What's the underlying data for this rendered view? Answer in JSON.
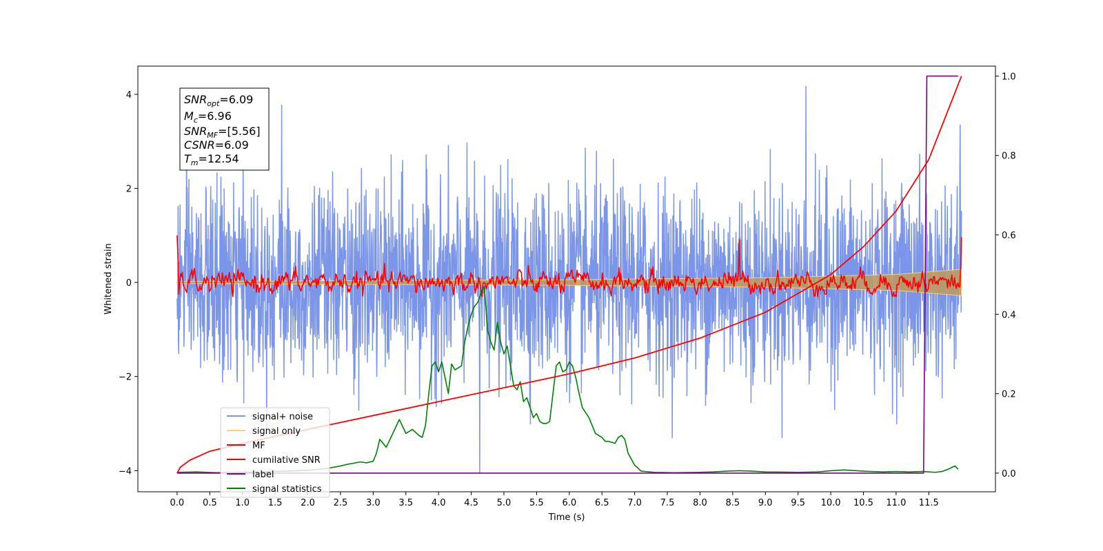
{
  "chart_data": {
    "type": "line",
    "title": "",
    "xlabel": "Time (s)",
    "ylabel": "Whitened strain",
    "ylabel_right": "",
    "xlim": [
      -0.6,
      12.52
    ],
    "ylim": [
      -4.45,
      4.6
    ],
    "ylim_right": [
      -0.047,
      1.025
    ],
    "xticks": [
      0.0,
      0.5,
      1.0,
      1.5,
      2.0,
      2.5,
      3.0,
      3.5,
      4.0,
      4.5,
      5.0,
      5.5,
      6.0,
      6.5,
      7.0,
      7.5,
      8.0,
      8.5,
      9.0,
      9.5,
      10.0,
      10.5,
      11.0,
      11.5
    ],
    "yticks_left": [
      -4,
      -2,
      0,
      2,
      4
    ],
    "yticks_right": [
      0.0,
      0.2,
      0.4,
      0.6,
      0.8,
      1.0
    ],
    "grid": false,
    "legend_position": "lower-left",
    "info_box": {
      "position": "top-left",
      "lines": [
        {
          "sym": "SNR",
          "sub": "opt",
          "rest": "=6.09"
        },
        {
          "sym": "M",
          "sub": "c",
          "rest": "=6.96"
        },
        {
          "sym": "SNR",
          "sub": "MF",
          "rest": "=[5.56]"
        },
        {
          "sym": "CSNR",
          "sub": "",
          "rest": "=6.09"
        },
        {
          "sym": "T",
          "sub": "m",
          "rest": "=12.54"
        }
      ]
    },
    "series": [
      {
        "name": "signal+ noise",
        "color": "#7b95e8",
        "axis": "left",
        "approx_std": 1.0,
        "approx_range": [
          -4.05,
          4.17
        ],
        "notable_points": [
          [
            4.63,
            -4.05
          ],
          [
            9.62,
            4.17
          ],
          [
            1.6,
            3.77
          ],
          [
            11.98,
            3.35
          ]
        ]
      },
      {
        "name": "signal only",
        "color": "#ffcc80",
        "axis": "left",
        "approx_envelope": [
          [
            0.0,
            0.02
          ],
          [
            6.0,
            0.06
          ],
          [
            9.0,
            0.1
          ],
          [
            11.0,
            0.17
          ],
          [
            12.0,
            0.28
          ]
        ]
      },
      {
        "name": "MF",
        "color": "#ff0000",
        "axis": "left",
        "start_value": 1.0,
        "end_value": 0.97,
        "approx_std": 0.12,
        "peaks": [
          [
            0.0,
            1.0
          ],
          [
            8.6,
            0.92
          ],
          [
            12.0,
            0.97
          ]
        ]
      },
      {
        "name": "cumilative SNR",
        "color": "#ff0000",
        "axis": "right",
        "x": [
          0.0,
          0.05,
          0.2,
          0.5,
          1.0,
          2.0,
          3.0,
          4.0,
          5.0,
          6.0,
          7.0,
          8.0,
          9.0,
          10.0,
          10.5,
          11.0,
          11.5,
          12.0
        ],
        "values": [
          0.0,
          0.015,
          0.033,
          0.055,
          0.075,
          0.11,
          0.145,
          0.18,
          0.215,
          0.25,
          0.29,
          0.34,
          0.405,
          0.5,
          0.57,
          0.66,
          0.79,
          1.0
        ]
      },
      {
        "name": "label",
        "color": "#800080",
        "axis": "right",
        "x": [
          0.0,
          11.42,
          11.47,
          11.95
        ],
        "values": [
          0.0,
          0.0,
          1.0,
          1.0
        ]
      },
      {
        "name": "signal statistics",
        "color": "#008000",
        "axis": "right",
        "x": [
          0.0,
          0.3,
          0.6,
          1.0,
          1.5,
          2.0,
          2.3,
          2.5,
          2.6,
          2.7,
          2.8,
          2.9,
          3.0,
          3.05,
          3.1,
          3.2,
          3.3,
          3.4,
          3.5,
          3.6,
          3.7,
          3.75,
          3.8,
          3.85,
          3.9,
          3.95,
          4.0,
          4.05,
          4.1,
          4.15,
          4.2,
          4.25,
          4.3,
          4.35,
          4.4,
          4.45,
          4.5,
          4.55,
          4.6,
          4.65,
          4.7,
          4.75,
          4.8,
          4.85,
          4.9,
          4.95,
          5.0,
          5.05,
          5.1,
          5.15,
          5.2,
          5.25,
          5.3,
          5.35,
          5.4,
          5.45,
          5.5,
          5.55,
          5.6,
          5.65,
          5.7,
          5.75,
          5.8,
          5.85,
          5.9,
          5.95,
          6.0,
          6.05,
          6.1,
          6.15,
          6.2,
          6.3,
          6.4,
          6.5,
          6.55,
          6.6,
          6.7,
          6.75,
          6.8,
          6.85,
          6.9,
          7.0,
          7.1,
          7.3,
          7.6,
          8.0,
          8.2,
          8.4,
          8.6,
          8.8,
          9.0,
          9.5,
          9.8,
          10.0,
          10.2,
          10.5,
          10.8,
          11.0,
          11.2,
          11.4,
          11.6,
          11.7,
          11.8,
          11.9,
          11.95
        ],
        "values": [
          0.002,
          0.003,
          0.001,
          0.002,
          0.004,
          0.007,
          0.012,
          0.018,
          0.022,
          0.025,
          0.028,
          0.026,
          0.03,
          0.05,
          0.085,
          0.065,
          0.1,
          0.135,
          0.1,
          0.11,
          0.095,
          0.09,
          0.12,
          0.2,
          0.27,
          0.28,
          0.255,
          0.28,
          0.24,
          0.2,
          0.275,
          0.26,
          0.265,
          0.27,
          0.33,
          0.37,
          0.4,
          0.42,
          0.43,
          0.455,
          0.47,
          0.36,
          0.33,
          0.31,
          0.38,
          0.33,
          0.3,
          0.32,
          0.27,
          0.22,
          0.21,
          0.23,
          0.18,
          0.19,
          0.165,
          0.14,
          0.15,
          0.13,
          0.125,
          0.125,
          0.13,
          0.2,
          0.27,
          0.28,
          0.255,
          0.26,
          0.28,
          0.27,
          0.24,
          0.2,
          0.165,
          0.14,
          0.1,
          0.09,
          0.08,
          0.08,
          0.075,
          0.09,
          0.095,
          0.085,
          0.05,
          0.02,
          0.005,
          0.002,
          0.001,
          0.002,
          0.003,
          0.005,
          0.006,
          0.005,
          0.003,
          0.002,
          0.003,
          0.006,
          0.008,
          0.005,
          0.003,
          0.004,
          0.003,
          0.004,
          0.002,
          0.004,
          0.01,
          0.018,
          0.01
        ]
      }
    ]
  }
}
